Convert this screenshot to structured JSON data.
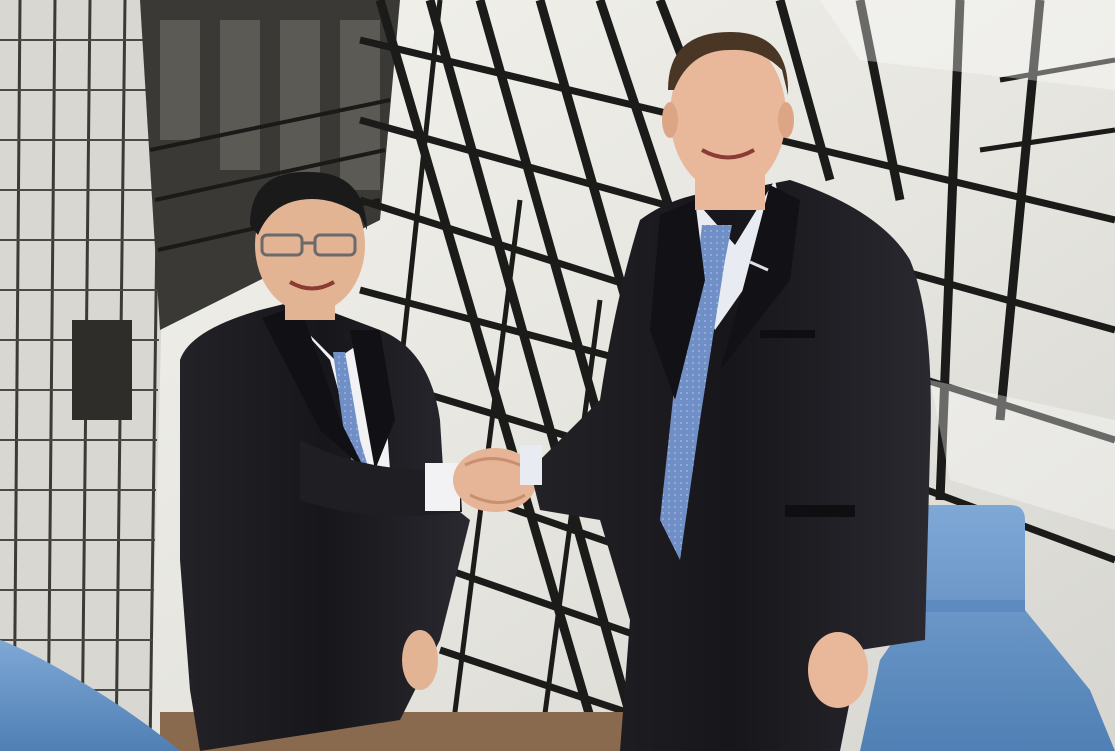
{
  "scene": {
    "subjects": [
      "person-left",
      "person-right"
    ],
    "action": "handshake",
    "colors": {
      "backdrop_light": "#e9e9e4",
      "backdrop_frame": "#1f1f1f",
      "suit": "#1c1b1f",
      "shirt": "#f2f2f4",
      "tie": "#6f8fc6",
      "chair": "#6f9ccc",
      "skin_left": "#e3b493",
      "skin_right": "#e9b79a",
      "floor": "#8a6a4e"
    }
  }
}
